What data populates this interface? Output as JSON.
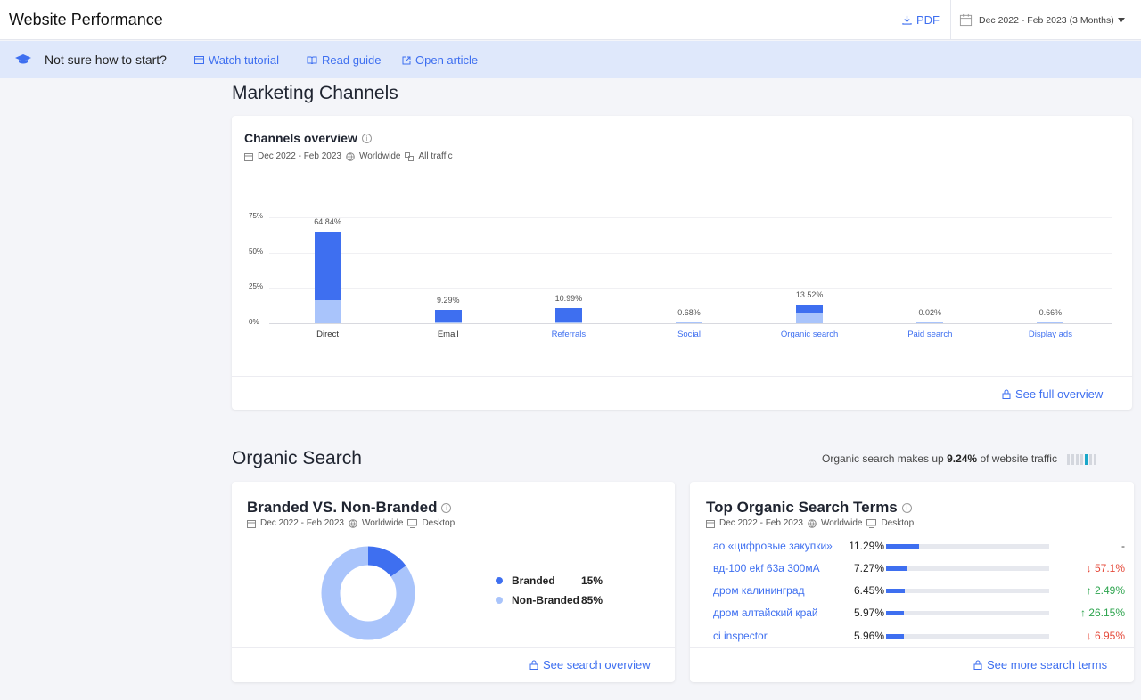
{
  "header": {
    "title": "Website Performance",
    "pdf_label": "PDF",
    "date_range": "Dec 2022 - Feb 2023 (3 Months)"
  },
  "helpbar": {
    "question": "Not sure how to start?",
    "links": [
      "Watch tutorial",
      "Read guide",
      "Open article"
    ]
  },
  "marketing": {
    "section_title": "Marketing Channels",
    "card_title": "Channels overview",
    "meta": {
      "date": "Dec 2022 - Feb 2023",
      "region": "Worldwide",
      "traffic": "All traffic"
    },
    "footer_link": "See full overview"
  },
  "chart_data": {
    "type": "bar",
    "categories": [
      "Direct",
      "Email",
      "Referrals",
      "Social",
      "Organic search",
      "Paid search",
      "Display ads"
    ],
    "category_is_link": [
      false,
      false,
      true,
      true,
      true,
      true,
      true
    ],
    "data_labels": [
      "64.84%",
      "9.29%",
      "10.99%",
      "0.68%",
      "13.52%",
      "0.02%",
      "0.66%"
    ],
    "values": [
      64.84,
      9.29,
      10.99,
      0.68,
      13.52,
      0.02,
      0.66
    ],
    "light_segment": [
      16.5,
      0.8,
      1.5,
      0.5,
      7.0,
      0.02,
      0.4
    ],
    "yticks": [
      "0%",
      "25%",
      "50%",
      "75%"
    ],
    "ylim": [
      0,
      75
    ],
    "colors": {
      "dark": "#3e6ff0",
      "light": "#a9c4fb"
    }
  },
  "organic": {
    "section_title": "Organic Search",
    "share_text_prefix": "Organic search makes up",
    "share_value": "9.24%",
    "share_text_suffix": "of website traffic",
    "branded": {
      "title": "Branded VS. Non-Branded",
      "meta": {
        "date": "Dec 2022 - Feb 2023",
        "region": "Worldwide",
        "device": "Desktop"
      },
      "legend": [
        {
          "label": "Branded",
          "value": "15%",
          "share": 15,
          "color": "#3e6ff0"
        },
        {
          "label": "Non-Branded",
          "value": "85%",
          "share": 85,
          "color": "#a9c4fb"
        }
      ],
      "footer_link": "See search overview"
    },
    "terms": {
      "title": "Top Organic Search Terms",
      "meta": {
        "date": "Dec 2022 - Feb 2023",
        "region": "Worldwide",
        "device": "Desktop"
      },
      "rows": [
        {
          "term": "ао «цифровые закупки»",
          "pct": "11.29%",
          "share": 11.29,
          "change": "-",
          "dir": "none"
        },
        {
          "term": "вд-100 ekf 63а 300мА",
          "pct": "7.27%",
          "share": 7.27,
          "change": "↓ 57.1%",
          "dir": "down"
        },
        {
          "term": "дром калининград",
          "pct": "6.45%",
          "share": 6.45,
          "change": "↑ 2.49%",
          "dir": "up"
        },
        {
          "term": "дром алтайский край",
          "pct": "5.97%",
          "share": 5.97,
          "change": "↑ 26.15%",
          "dir": "up"
        },
        {
          "term": "ci inspector",
          "pct": "5.96%",
          "share": 5.96,
          "change": "↓ 6.95%",
          "dir": "down"
        }
      ],
      "footer_link": "See more search terms"
    }
  }
}
